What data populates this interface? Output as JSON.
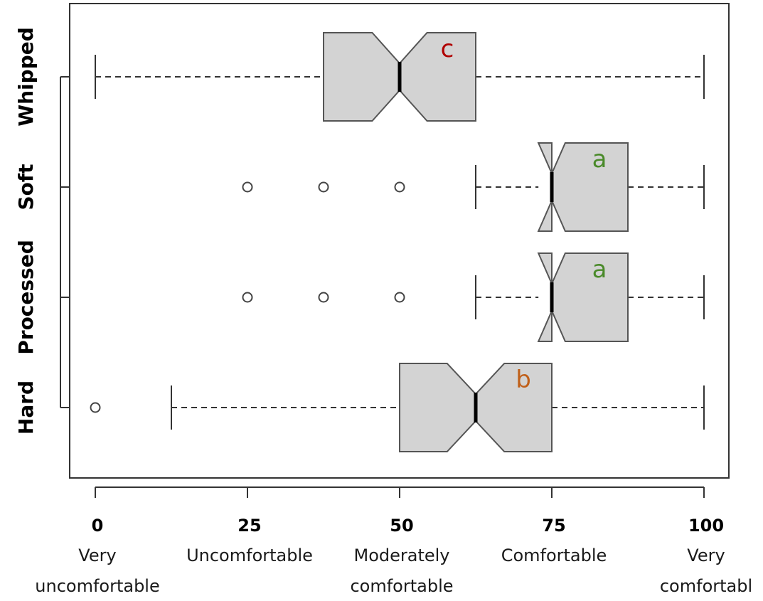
{
  "chart_data": {
    "type": "boxplot",
    "orientation": "horizontal",
    "notched": true,
    "xlim": [
      0,
      100
    ],
    "box_fill": "#d3d3d3",
    "grid": false,
    "x_ticks": [
      {
        "value": 0,
        "label": "0",
        "desc": [
          "Very",
          "uncomfortable"
        ]
      },
      {
        "value": 25,
        "label": "25",
        "desc": [
          "Uncomfortable"
        ]
      },
      {
        "value": 50,
        "label": "50",
        "desc": [
          "Moderately",
          "comfortable"
        ]
      },
      {
        "value": 75,
        "label": "75",
        "desc": [
          "Comfortable"
        ]
      },
      {
        "value": 100,
        "label": "100",
        "desc": [
          "Very",
          "comfortabl"
        ]
      }
    ],
    "categories": [
      "Whipped",
      "Soft",
      "Processed",
      "Hard"
    ],
    "boxes": [
      {
        "category": "Whipped",
        "whisker_low": 0,
        "q1": 37.5,
        "median": 50,
        "q3": 62.5,
        "whisker_high": 100,
        "notch_low": 45.5,
        "notch_high": 54.5,
        "outliers": [],
        "group": "c",
        "group_color": "#b00000"
      },
      {
        "category": "Soft",
        "whisker_low": 62.5,
        "q1": 75,
        "median": 75,
        "q3": 87.5,
        "whisker_high": 100,
        "notch_low": 72.8,
        "notch_high": 77.2,
        "outliers": [
          25,
          37.5,
          50
        ],
        "group": "a",
        "group_color": "#4a8a2a"
      },
      {
        "category": "Processed",
        "whisker_low": 62.5,
        "q1": 75,
        "median": 75,
        "q3": 87.5,
        "whisker_high": 100,
        "notch_low": 72.8,
        "notch_high": 77.2,
        "outliers": [
          25,
          37.5,
          50
        ],
        "group": "a",
        "group_color": "#4a8a2a"
      },
      {
        "category": "Hard",
        "whisker_low": 12.5,
        "q1": 50,
        "median": 62.5,
        "q3": 75,
        "whisker_high": 100,
        "notch_low": 57.8,
        "notch_high": 67.2,
        "outliers": [
          0
        ],
        "group": "b",
        "group_color": "#c0601a"
      }
    ]
  }
}
